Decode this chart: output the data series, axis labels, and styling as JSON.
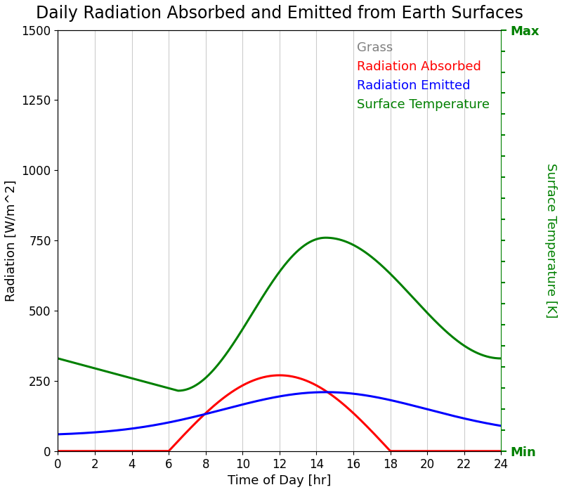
{
  "title": "Daily Radiation Absorbed and Emitted from Earth Surfaces",
  "xlabel": "Time of Day [hr]",
  "ylabel_left": "Radiation [W/m^2]",
  "ylabel_right": "Surface Temperature [K]",
  "legend_title": "Grass",
  "legend_absorbed": "Radiation Absorbed",
  "legend_emitted": "Radiation Emitted",
  "legend_temp": "Surface Temperature",
  "color_absorbed": "red",
  "color_emitted": "blue",
  "color_temp": "green",
  "xlim": [
    0,
    24
  ],
  "ylim_left": [
    0,
    1500
  ],
  "right_axis_min_label": "Min",
  "right_axis_max_label": "Max",
  "xticks": [
    0,
    2,
    4,
    6,
    8,
    10,
    12,
    14,
    16,
    18,
    20,
    22,
    24
  ],
  "yticks_left": [
    0,
    250,
    500,
    750,
    1000,
    1250,
    1500
  ],
  "background_color": "white",
  "title_fontsize": 17,
  "axis_fontsize": 13,
  "legend_fontsize": 13,
  "linewidth": 2.2,
  "grid_color": "#cccccc"
}
